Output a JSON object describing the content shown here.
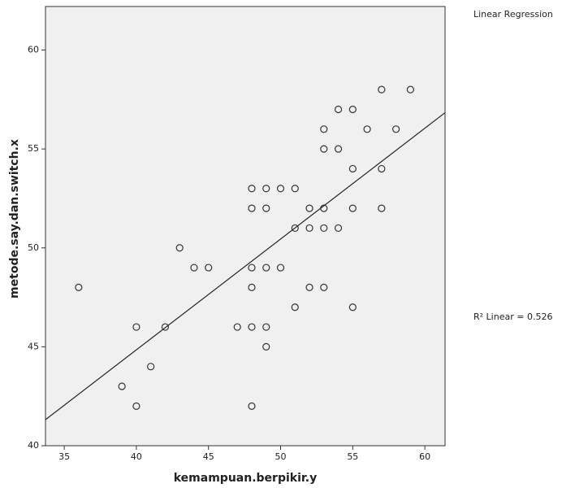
{
  "chart_data": {
    "type": "scatter",
    "x_label": "kemampuan.berpikir.y",
    "y_label": "metode.say.dan.switch.x",
    "legend_title": "Linear Regression",
    "fit_label": "R² Linear = 0.526",
    "x": [
      36,
      43,
      44,
      45,
      42,
      40,
      41,
      39,
      40,
      47,
      48,
      48,
      48,
      48,
      48,
      48,
      49,
      49,
      49,
      49,
      49,
      50,
      50,
      51,
      51,
      51,
      52,
      52,
      52,
      53,
      53,
      53,
      53,
      53,
      54,
      54,
      54,
      55,
      55,
      55,
      55,
      56,
      57,
      57,
      57,
      58,
      59
    ],
    "values": [
      48,
      50,
      49,
      49,
      46,
      46,
      44,
      43,
      42,
      46,
      46,
      42,
      53,
      52,
      49,
      48,
      53,
      52,
      49,
      46,
      45,
      53,
      49,
      53,
      51,
      47,
      52,
      51,
      48,
      56,
      55,
      52,
      51,
      48,
      57,
      55,
      51,
      57,
      54,
      52,
      47,
      56,
      58,
      54,
      52,
      56,
      58
    ],
    "xlim": [
      33.7,
      61.4
    ],
    "ylim": [
      40,
      62.2
    ],
    "xticks": [
      35,
      40,
      45,
      50,
      55,
      60
    ],
    "yticks": [
      40,
      45,
      50,
      55,
      60
    ],
    "color": "#333333",
    "background": "#f0f0f0",
    "fit_line": true
  }
}
